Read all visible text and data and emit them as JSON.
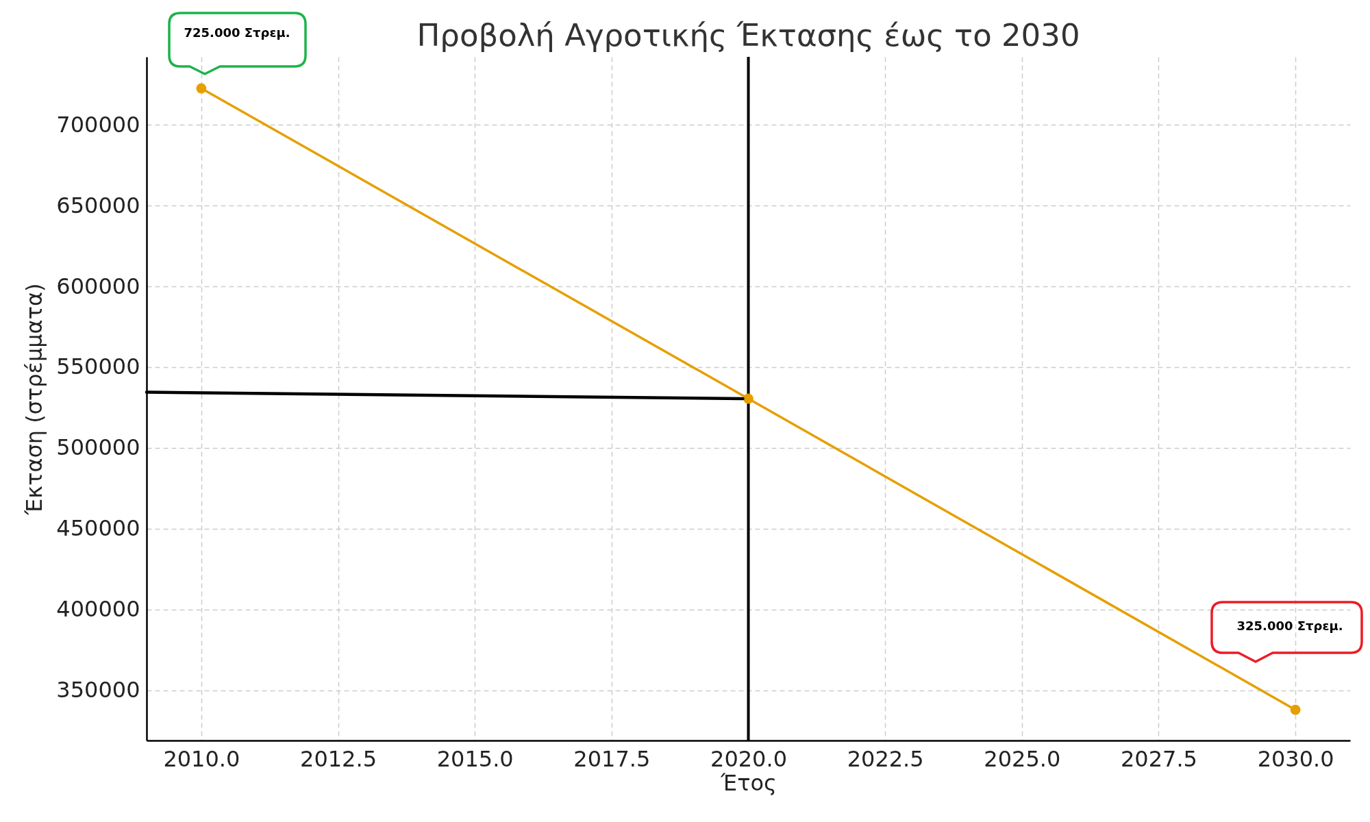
{
  "chart_data": {
    "type": "line",
    "title": "Προβολή Αγροτικής Έκτασης έως το 2030",
    "xlabel": "Έτος",
    "ylabel": "Έκταση (στρέμματα)",
    "series": [
      {
        "color": "#e69f00",
        "marker": "circle",
        "x": [
          2010,
          2020,
          2030
        ],
        "values": [
          722500,
          530500,
          338000
        ]
      },
      {
        "color": "#000000",
        "x": [
          2009,
          2019.9
        ],
        "values": [
          534500,
          530500
        ]
      }
    ],
    "xlim": [
      2009,
      2031
    ],
    "ylim": [
      319000,
      742000
    ],
    "xticks": [
      {
        "value": 2010,
        "label": "2010.0"
      },
      2012.5,
      {
        "value": 2015,
        "label": "2015.0"
      },
      2017.5,
      {
        "value": 2020,
        "label": "2020.0"
      },
      2022.5,
      {
        "value": 2025,
        "label": "2025.0"
      },
      2027.5,
      {
        "value": 2030,
        "label": "2030.0"
      }
    ],
    "yticks": [
      350000,
      400000,
      450000,
      500000,
      550000,
      600000,
      650000,
      700000
    ],
    "grid": true,
    "ref_lines": [
      {
        "axis": "x",
        "value": 2020,
        "color": "#000000"
      }
    ],
    "annotations": [
      "725.000 Στρεμ.",
      "325.000 Στρεμ."
    ]
  }
}
